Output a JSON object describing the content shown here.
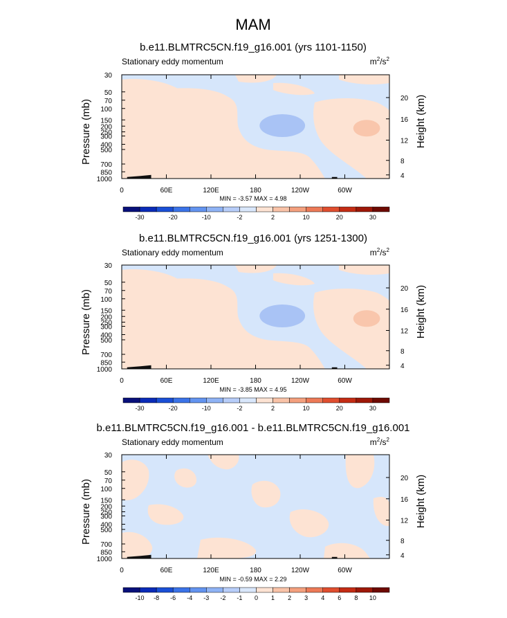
{
  "figure": {
    "season": "MAM"
  },
  "chart_data": [
    {
      "type": "heatmap",
      "title": "b.e11.BLMTRC5CN.f19_g16.001 (yrs 1101-1150)",
      "subtitle_left": "Stationary eddy momentum",
      "units": {
        "base": "m",
        "sup1": "2",
        "mid": "/s",
        "sup2": "2"
      },
      "ylabel": "Pressure (mb)",
      "ylabel_right": "Height (km)",
      "pressure_ticks": [
        "30",
        "50",
        "70",
        "100",
        "150",
        "200",
        "250",
        "300",
        "400",
        "500",
        "700",
        "850",
        "1000"
      ],
      "height_ticks": [
        "20",
        "16",
        "12",
        "8",
        "4"
      ],
      "x_ticks": [
        "0",
        "60E",
        "120E",
        "180",
        "120W",
        "60W"
      ],
      "min": "-3.57",
      "max": "4.98",
      "stats_text": "MIN =  -3.57  MAX =   4.98",
      "colorbar_labels": [
        "-30",
        "-20",
        "-10",
        "-2",
        "2",
        "10",
        "20",
        "30"
      ],
      "colorbar_colors": [
        "#08107a",
        "#0a2bb8",
        "#1a4fd6",
        "#3b73e8",
        "#6394f0",
        "#8fb3f5",
        "#b7cdf9",
        "#d9e7fb",
        "#fde3d3",
        "#f9c3a8",
        "#f4a07e",
        "#ed7a57",
        "#e04e2f",
        "#c42c14",
        "#9e1808",
        "#6e0a02"
      ]
    },
    {
      "type": "heatmap",
      "title": "b.e11.BLMTRC5CN.f19_g16.001 (yrs 1251-1300)",
      "subtitle_left": "Stationary eddy momentum",
      "units": {
        "base": "m",
        "sup1": "2",
        "mid": "/s",
        "sup2": "2"
      },
      "ylabel": "Pressure (mb)",
      "ylabel_right": "Height (km)",
      "pressure_ticks": [
        "30",
        "50",
        "70",
        "100",
        "150",
        "200",
        "250",
        "300",
        "400",
        "500",
        "700",
        "850",
        "1000"
      ],
      "height_ticks": [
        "20",
        "16",
        "12",
        "8",
        "4"
      ],
      "x_ticks": [
        "0",
        "60E",
        "120E",
        "180",
        "120W",
        "60W"
      ],
      "min": "-3.85",
      "max": "4.95",
      "stats_text": "MIN =  -3.85  MAX =   4.95",
      "colorbar_labels": [
        "-30",
        "-20",
        "-10",
        "-2",
        "2",
        "10",
        "20",
        "30"
      ],
      "colorbar_colors": [
        "#08107a",
        "#0a2bb8",
        "#1a4fd6",
        "#3b73e8",
        "#6394f0",
        "#8fb3f5",
        "#b7cdf9",
        "#d9e7fb",
        "#fde3d3",
        "#f9c3a8",
        "#f4a07e",
        "#ed7a57",
        "#e04e2f",
        "#c42c14",
        "#9e1808",
        "#6e0a02"
      ]
    },
    {
      "type": "heatmap",
      "title": "b.e11.BLMTRC5CN.f19_g16.001 - b.e11.BLMTRC5CN.f19_g16.001",
      "subtitle_left": "Stationary eddy momentum",
      "units": {
        "base": "m",
        "sup1": "2",
        "mid": "/s",
        "sup2": "2"
      },
      "ylabel": "Pressure (mb)",
      "ylabel_right": "Height (km)",
      "pressure_ticks": [
        "30",
        "50",
        "70",
        "100",
        "150",
        "200",
        "250",
        "300",
        "400",
        "500",
        "700",
        "850",
        "1000"
      ],
      "height_ticks": [
        "20",
        "16",
        "12",
        "8",
        "4"
      ],
      "x_ticks": [
        "0",
        "60E",
        "120E",
        "180",
        "120W",
        "60W"
      ],
      "min": "-0.59",
      "max": "2.29",
      "stats_text": "MIN =  -0.59  MAX =   2.29",
      "colorbar_labels": [
        "-10",
        "-8",
        "-6",
        "-4",
        "-3",
        "-2",
        "-1",
        "0",
        "1",
        "2",
        "3",
        "4",
        "6",
        "8",
        "10"
      ],
      "colorbar_colors": [
        "#08107a",
        "#0a2bb8",
        "#1a4fd6",
        "#3b73e8",
        "#6394f0",
        "#8fb3f5",
        "#b7cdf9",
        "#d9e7fb",
        "#fde3d3",
        "#f9c3a8",
        "#f4a07e",
        "#ed7a57",
        "#e04e2f",
        "#c42c14",
        "#9e1808",
        "#6e0a02"
      ]
    }
  ]
}
